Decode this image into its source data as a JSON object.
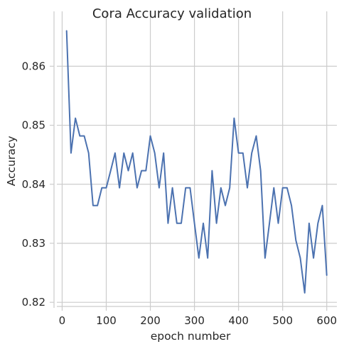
{
  "chart_data": {
    "type": "line",
    "title": "Cora Accuracy validation",
    "xlabel": "epoch number",
    "ylabel": "Accuracy",
    "xlim": [
      -12,
      623
    ],
    "ylim": [
      0.8193,
      0.8693
    ],
    "xticks": [
      0,
      100,
      200,
      300,
      400,
      500,
      600
    ],
    "yticks": [
      0.82,
      0.83,
      0.84,
      0.85,
      0.86
    ],
    "ytick_labels": [
      "0.82",
      "0.83",
      "0.84",
      "0.85",
      "0.86"
    ],
    "grid": true,
    "color": "#4c72b0",
    "series": [
      {
        "x": [
          10,
          20,
          30,
          40,
          50,
          60,
          70,
          80,
          90,
          100,
          110,
          120,
          130,
          140,
          150,
          160,
          170,
          180,
          190,
          200,
          210,
          220,
          230,
          240,
          250,
          260,
          270,
          280,
          290,
          300,
          310,
          320,
          330,
          340,
          350,
          360,
          370,
          380,
          390,
          400,
          410,
          420,
          430,
          440,
          450,
          460,
          470,
          480,
          490,
          500,
          510,
          520,
          530,
          540,
          550,
          560,
          570,
          580,
          590,
          600
        ],
        "y": [
          0.866,
          0.8453,
          0.8512,
          0.8482,
          0.8482,
          0.8453,
          0.8364,
          0.8364,
          0.8394,
          0.8394,
          0.8423,
          0.8453,
          0.8394,
          0.8453,
          0.8423,
          0.8453,
          0.8394,
          0.8423,
          0.8423,
          0.8482,
          0.8453,
          0.8394,
          0.8453,
          0.8334,
          0.8394,
          0.8334,
          0.8334,
          0.8394,
          0.8394,
          0.8334,
          0.8275,
          0.8334,
          0.8275,
          0.8423,
          0.8334,
          0.8394,
          0.8364,
          0.8394,
          0.8512,
          0.8453,
          0.8453,
          0.8394,
          0.8453,
          0.8482,
          0.8423,
          0.8275,
          0.8334,
          0.8394,
          0.8334,
          0.8394,
          0.8394,
          0.8364,
          0.8305,
          0.8275,
          0.8216,
          0.8334,
          0.8275,
          0.8334,
          0.8364,
          0.8246
        ]
      }
    ]
  }
}
